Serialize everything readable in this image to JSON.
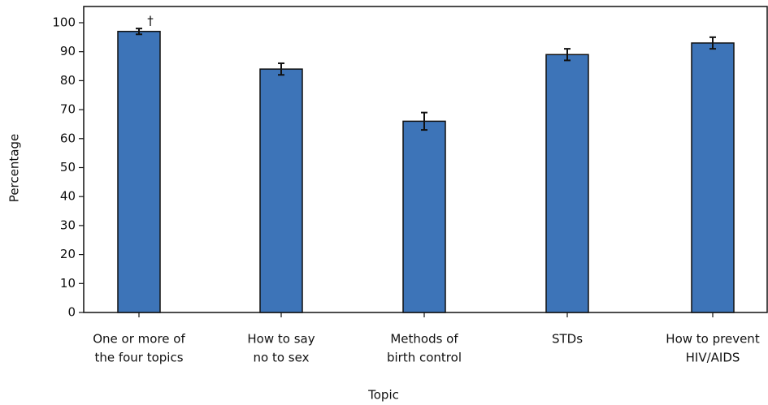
{
  "chart_data": {
    "type": "bar",
    "categories": [
      [
        "One or more of",
        "the four topics"
      ],
      [
        "How to say",
        "no to sex"
      ],
      [
        "Methods of",
        "birth control"
      ],
      [
        "STDs"
      ],
      [
        "How to prevent",
        "HIV/AIDS"
      ]
    ],
    "values": [
      97,
      84,
      66,
      89,
      93
    ],
    "errors": [
      1,
      2,
      3,
      2,
      2
    ],
    "annotations": [
      {
        "category": 0,
        "text": "†"
      }
    ],
    "color": "#3d74b8",
    "ylim": [
      0,
      105.6
    ],
    "yticks": [
      0,
      10,
      20,
      30,
      40,
      50,
      60,
      70,
      80,
      90,
      100
    ],
    "xlabel": "Topic",
    "ylabel": "Percentage"
  }
}
